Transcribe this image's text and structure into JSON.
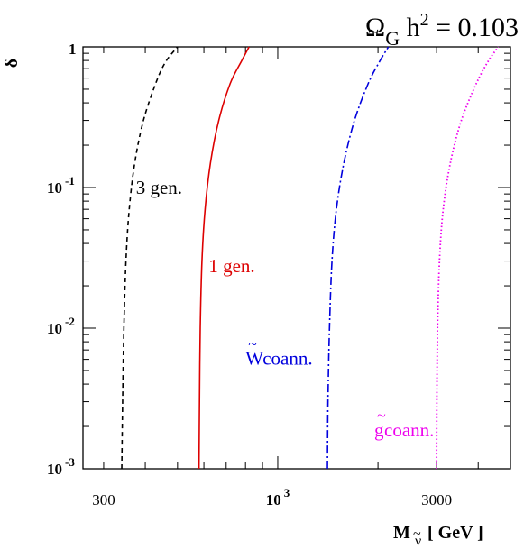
{
  "chart_data": {
    "type": "line",
    "title": {
      "symbol": "Ω",
      "subscript_tilde": "~",
      "subscript": "G",
      "rest": " h",
      "power": "2",
      "tail": " = 0.103"
    },
    "xlabel": {
      "main": "M",
      "subscript_tilde": "~",
      "subscript": "ν",
      "unit": "[ GeV ]"
    },
    "ylabel": "δ",
    "x_scale": "log",
    "y_scale": "log",
    "xlim": [
      260,
      5000
    ],
    "ylim": [
      0.001,
      1
    ],
    "grid": false,
    "x_ticks": [
      {
        "value": 300,
        "label": "300",
        "power": "",
        "bold": false
      },
      {
        "value": 1000,
        "label": "10",
        "power": "3",
        "bold": true
      },
      {
        "value": 3000,
        "label": "3000",
        "power": "",
        "bold": false
      }
    ],
    "y_ticks": [
      {
        "value": 1,
        "label": "1",
        "power": ""
      },
      {
        "value": 0.1,
        "label": "10",
        "power": "-1"
      },
      {
        "value": 0.01,
        "label": "10",
        "power": "-2"
      },
      {
        "value": 0.001,
        "label": "10",
        "power": "-3"
      }
    ],
    "series": [
      {
        "label": "3 gen.",
        "label_tilde": "",
        "label_glyph": "",
        "label_position": {
          "x": 375,
          "y": 0.09
        },
        "color": "#000000",
        "style": "dashed",
        "x": [
          340,
          342,
          345,
          350,
          358,
          372,
          395,
          430,
          460,
          500
        ],
        "y": [
          0.001,
          0.003,
          0.01,
          0.03,
          0.07,
          0.15,
          0.3,
          0.55,
          0.78,
          1
        ]
      },
      {
        "label": "1 gen.",
        "label_tilde": "",
        "label_glyph": "",
        "label_position": {
          "x": 620,
          "y": 0.025
        },
        "color": "#dd0000",
        "style": "solid",
        "x": [
          580,
          582,
          585,
          592,
          605,
          628,
          665,
          720,
          780,
          820
        ],
        "y": [
          0.001,
          0.003,
          0.01,
          0.03,
          0.07,
          0.15,
          0.3,
          0.55,
          0.8,
          1
        ]
      },
      {
        "label": " coann.",
        "label_tilde": "~",
        "label_glyph": "W",
        "label_position": {
          "x": 800,
          "y": 0.0055
        },
        "color": "#0000dd",
        "style": "dashdot",
        "x": [
          1410,
          1415,
          1430,
          1455,
          1500,
          1580,
          1700,
          1870,
          2030,
          2150
        ],
        "y": [
          0.001,
          0.003,
          0.01,
          0.03,
          0.07,
          0.15,
          0.3,
          0.55,
          0.8,
          1
        ]
      },
      {
        "label": " coann.",
        "label_tilde": "~",
        "label_glyph": "g",
        "label_position": {
          "x": 1950,
          "y": 0.0017
        },
        "color": "#ee00ee",
        "style": "dotted",
        "x": [
          3000,
          3005,
          3020,
          3060,
          3140,
          3300,
          3560,
          3950,
          4300,
          4600
        ],
        "y": [
          0.001,
          0.003,
          0.01,
          0.03,
          0.07,
          0.15,
          0.3,
          0.55,
          0.8,
          1
        ]
      }
    ]
  }
}
